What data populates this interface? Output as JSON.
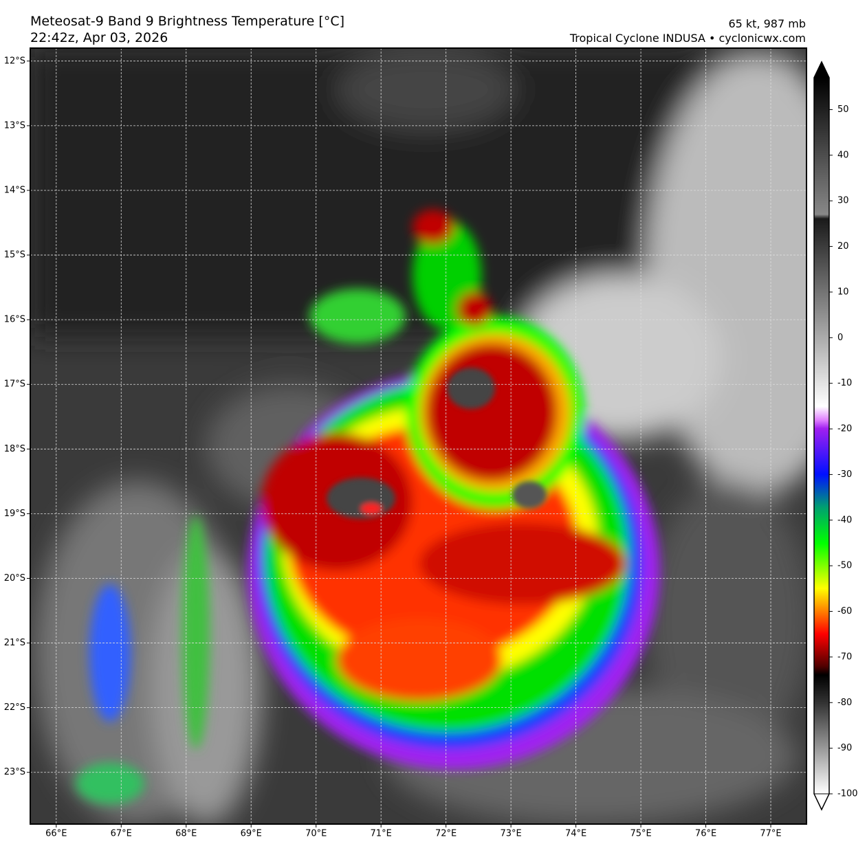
{
  "header": {
    "title": "Meteosat-9 Band 9 Brightness Temperature [°C]",
    "timestamp": "22:42z, Apr 03, 2026",
    "intensity": "65 kt, 987 mb",
    "credit": "Tropical Cyclone INDUSA • cyclonicwx.com"
  },
  "map": {
    "lon_range": [
      65.6,
      77.55
    ],
    "lat_range": [
      -11.8,
      -23.8
    ],
    "grid": true,
    "lon_ticks": [
      {
        "value": 66,
        "label": "66°E"
      },
      {
        "value": 67,
        "label": "67°E"
      },
      {
        "value": 68,
        "label": "68°E"
      },
      {
        "value": 69,
        "label": "69°E"
      },
      {
        "value": 70,
        "label": "70°E"
      },
      {
        "value": 71,
        "label": "71°E"
      },
      {
        "value": 72,
        "label": "72°E"
      },
      {
        "value": 73,
        "label": "73°E"
      },
      {
        "value": 74,
        "label": "74°E"
      },
      {
        "value": 75,
        "label": "75°E"
      },
      {
        "value": 76,
        "label": "76°E"
      },
      {
        "value": 77,
        "label": "77°E"
      }
    ],
    "lat_ticks": [
      {
        "value": -12,
        "label": "12°S"
      },
      {
        "value": -13,
        "label": "13°S"
      },
      {
        "value": -14,
        "label": "14°S"
      },
      {
        "value": -15,
        "label": "15°S"
      },
      {
        "value": -16,
        "label": "16°S"
      },
      {
        "value": -17,
        "label": "17°S"
      },
      {
        "value": -18,
        "label": "18°S"
      },
      {
        "value": -19,
        "label": "19°S"
      },
      {
        "value": -20,
        "label": "20°S"
      },
      {
        "value": -21,
        "label": "21°S"
      },
      {
        "value": -22,
        "label": "22°S"
      },
      {
        "value": -23,
        "label": "23°S"
      }
    ]
  },
  "colorbar": {
    "range": [
      -100,
      57
    ],
    "ticks": [
      50,
      40,
      30,
      20,
      10,
      0,
      -10,
      -20,
      -30,
      -40,
      -50,
      -60,
      -70,
      -80,
      -90,
      -100
    ]
  }
}
